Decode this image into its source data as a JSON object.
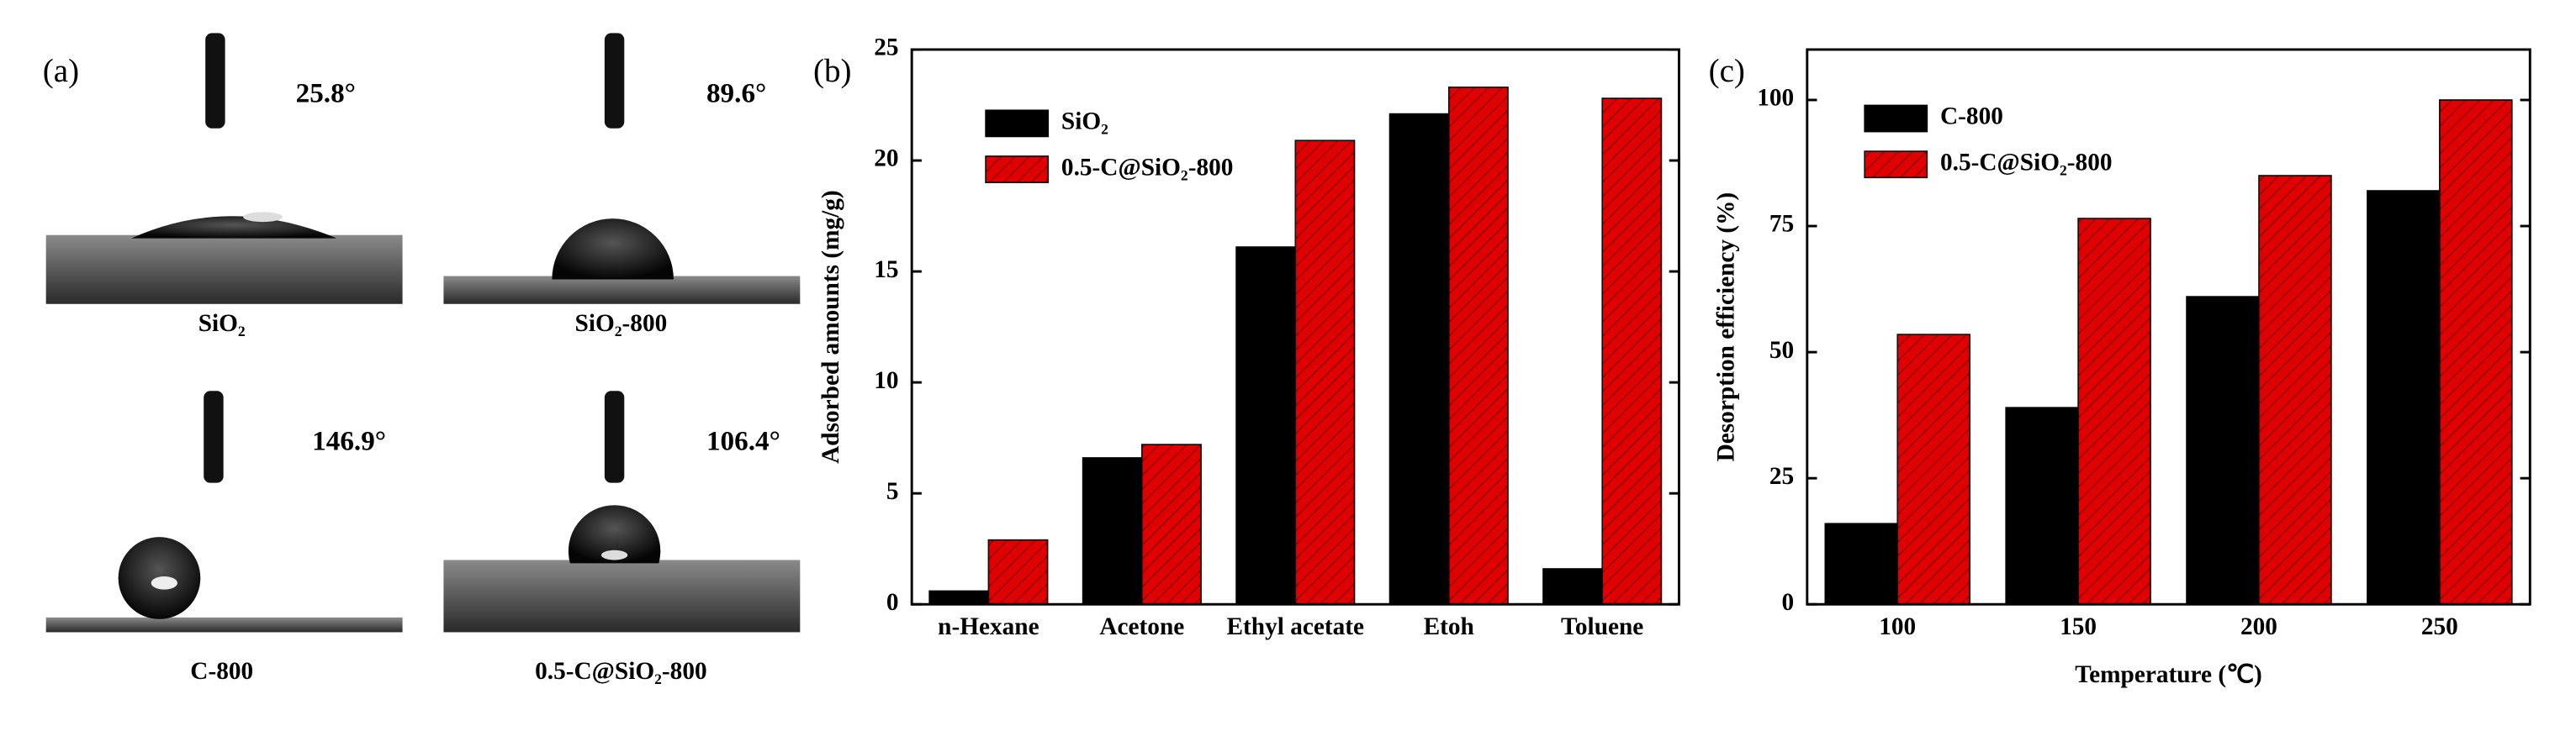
{
  "panel_a": {
    "label": "(a)",
    "images": [
      {
        "angle": "25.8°",
        "caption": "SiO₂"
      },
      {
        "angle": "89.6°",
        "caption": "SiO₂-800"
      },
      {
        "angle": "146.9°",
        "caption": "C-800"
      },
      {
        "angle": "106.4°",
        "caption": "0.5-C@SiO₂-800"
      }
    ]
  },
  "chart_data": [
    {
      "type": "bar",
      "panel_label": "(b)",
      "categories": [
        "n-Hexane",
        "Acetone",
        "Ethyl acetate",
        "Etoh",
        "Toluene"
      ],
      "series": [
        {
          "name": "SiO₂",
          "color": "#000000",
          "values": [
            0.6,
            6.6,
            16.1,
            22.1,
            1.6
          ]
        },
        {
          "name": "0.5-C@SiO₂-800",
          "color": "#e00000",
          "hatch": true,
          "values": [
            2.9,
            7.2,
            20.9,
            23.3,
            22.8
          ]
        }
      ],
      "y_label": "Adsorbed amounts (mg/g)",
      "ylim": [
        0,
        25
      ],
      "yticks": [
        0,
        5,
        10,
        15,
        20,
        25
      ]
    },
    {
      "type": "bar",
      "panel_label": "(c)",
      "categories": [
        "100",
        "150",
        "200",
        "250"
      ],
      "series": [
        {
          "name": "C-800",
          "color": "#000000",
          "values": [
            16,
            39,
            61,
            82
          ]
        },
        {
          "name": "0.5-C@SiO₂-800",
          "color": "#e00000",
          "hatch": true,
          "values": [
            53.5,
            76.5,
            85,
            100
          ]
        }
      ],
      "x_label": "Temperature (℃)",
      "y_label": "Desorption efficiency (%)",
      "ylim": [
        0,
        110
      ],
      "yticks": [
        0,
        25,
        50,
        75,
        100
      ]
    }
  ]
}
